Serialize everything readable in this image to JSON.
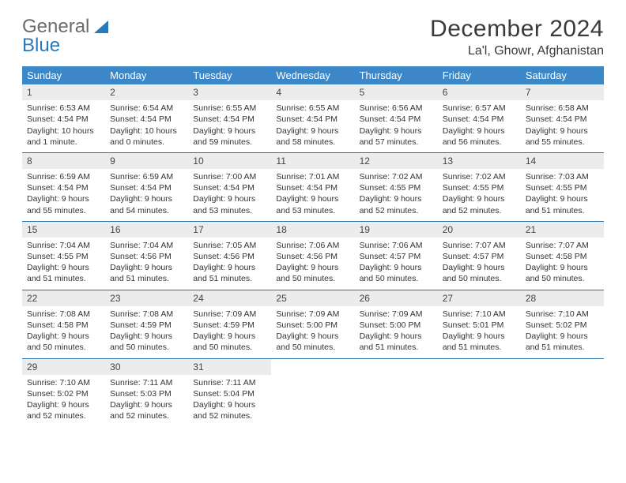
{
  "brand": {
    "word1": "General",
    "word2": "Blue",
    "logo_color": "#2a79b8",
    "grey": "#6b6b6b"
  },
  "title": "December 2024",
  "location": "La'l, Ghowr, Afghanistan",
  "colors": {
    "header_bg": "#3b87c8",
    "header_fg": "#ffffff",
    "row_divider": "#2f6ea5",
    "daynum_bg": "#ececec",
    "page_bg": "#ffffff"
  },
  "weekdays": [
    "Sunday",
    "Monday",
    "Tuesday",
    "Wednesday",
    "Thursday",
    "Friday",
    "Saturday"
  ],
  "weeks": [
    [
      {
        "n": "1",
        "sr": "6:53 AM",
        "ss": "4:54 PM",
        "dl": "10 hours and 1 minute."
      },
      {
        "n": "2",
        "sr": "6:54 AM",
        "ss": "4:54 PM",
        "dl": "10 hours and 0 minutes."
      },
      {
        "n": "3",
        "sr": "6:55 AM",
        "ss": "4:54 PM",
        "dl": "9 hours and 59 minutes."
      },
      {
        "n": "4",
        "sr": "6:55 AM",
        "ss": "4:54 PM",
        "dl": "9 hours and 58 minutes."
      },
      {
        "n": "5",
        "sr": "6:56 AM",
        "ss": "4:54 PM",
        "dl": "9 hours and 57 minutes."
      },
      {
        "n": "6",
        "sr": "6:57 AM",
        "ss": "4:54 PM",
        "dl": "9 hours and 56 minutes."
      },
      {
        "n": "7",
        "sr": "6:58 AM",
        "ss": "4:54 PM",
        "dl": "9 hours and 55 minutes."
      }
    ],
    [
      {
        "n": "8",
        "sr": "6:59 AM",
        "ss": "4:54 PM",
        "dl": "9 hours and 55 minutes."
      },
      {
        "n": "9",
        "sr": "6:59 AM",
        "ss": "4:54 PM",
        "dl": "9 hours and 54 minutes."
      },
      {
        "n": "10",
        "sr": "7:00 AM",
        "ss": "4:54 PM",
        "dl": "9 hours and 53 minutes."
      },
      {
        "n": "11",
        "sr": "7:01 AM",
        "ss": "4:54 PM",
        "dl": "9 hours and 53 minutes."
      },
      {
        "n": "12",
        "sr": "7:02 AM",
        "ss": "4:55 PM",
        "dl": "9 hours and 52 minutes."
      },
      {
        "n": "13",
        "sr": "7:02 AM",
        "ss": "4:55 PM",
        "dl": "9 hours and 52 minutes."
      },
      {
        "n": "14",
        "sr": "7:03 AM",
        "ss": "4:55 PM",
        "dl": "9 hours and 51 minutes."
      }
    ],
    [
      {
        "n": "15",
        "sr": "7:04 AM",
        "ss": "4:55 PM",
        "dl": "9 hours and 51 minutes."
      },
      {
        "n": "16",
        "sr": "7:04 AM",
        "ss": "4:56 PM",
        "dl": "9 hours and 51 minutes."
      },
      {
        "n": "17",
        "sr": "7:05 AM",
        "ss": "4:56 PM",
        "dl": "9 hours and 51 minutes."
      },
      {
        "n": "18",
        "sr": "7:06 AM",
        "ss": "4:56 PM",
        "dl": "9 hours and 50 minutes."
      },
      {
        "n": "19",
        "sr": "7:06 AM",
        "ss": "4:57 PM",
        "dl": "9 hours and 50 minutes."
      },
      {
        "n": "20",
        "sr": "7:07 AM",
        "ss": "4:57 PM",
        "dl": "9 hours and 50 minutes."
      },
      {
        "n": "21",
        "sr": "7:07 AM",
        "ss": "4:58 PM",
        "dl": "9 hours and 50 minutes."
      }
    ],
    [
      {
        "n": "22",
        "sr": "7:08 AM",
        "ss": "4:58 PM",
        "dl": "9 hours and 50 minutes."
      },
      {
        "n": "23",
        "sr": "7:08 AM",
        "ss": "4:59 PM",
        "dl": "9 hours and 50 minutes."
      },
      {
        "n": "24",
        "sr": "7:09 AM",
        "ss": "4:59 PM",
        "dl": "9 hours and 50 minutes."
      },
      {
        "n": "25",
        "sr": "7:09 AM",
        "ss": "5:00 PM",
        "dl": "9 hours and 50 minutes."
      },
      {
        "n": "26",
        "sr": "7:09 AM",
        "ss": "5:00 PM",
        "dl": "9 hours and 51 minutes."
      },
      {
        "n": "27",
        "sr": "7:10 AM",
        "ss": "5:01 PM",
        "dl": "9 hours and 51 minutes."
      },
      {
        "n": "28",
        "sr": "7:10 AM",
        "ss": "5:02 PM",
        "dl": "9 hours and 51 minutes."
      }
    ],
    [
      {
        "n": "29",
        "sr": "7:10 AM",
        "ss": "5:02 PM",
        "dl": "9 hours and 52 minutes."
      },
      {
        "n": "30",
        "sr": "7:11 AM",
        "ss": "5:03 PM",
        "dl": "9 hours and 52 minutes."
      },
      {
        "n": "31",
        "sr": "7:11 AM",
        "ss": "5:04 PM",
        "dl": "9 hours and 52 minutes."
      },
      null,
      null,
      null,
      null
    ]
  ],
  "labels": {
    "sunrise": "Sunrise:",
    "sunset": "Sunset:",
    "daylight": "Daylight:"
  }
}
